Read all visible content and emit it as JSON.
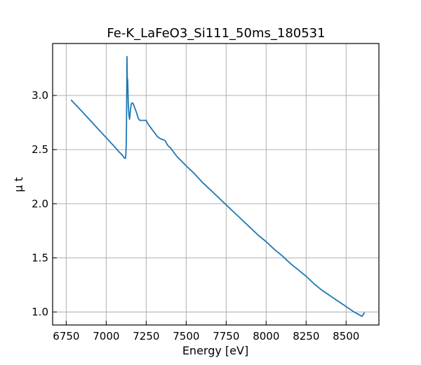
{
  "chart_data": {
    "type": "line",
    "title": "Fe-K_LaFeO3_Si111_50ms_180531",
    "xlabel": "Energy [eV]",
    "ylabel": "μ t",
    "xlim": [
      6665,
      8705
    ],
    "ylim": [
      0.88,
      3.48
    ],
    "xticks": [
      6750,
      7000,
      7250,
      7500,
      7750,
      8000,
      8250,
      8500
    ],
    "yticks": [
      1.0,
      1.5,
      2.0,
      2.5,
      3.0
    ],
    "xtick_labels": [
      "6750",
      "7000",
      "7250",
      "7500",
      "7750",
      "8000",
      "8250",
      "8500"
    ],
    "ytick_labels": [
      "1.0",
      "1.5",
      "2.0",
      "2.5",
      "3.0"
    ],
    "grid": true,
    "color": "#1f77b4",
    "series": [
      {
        "x": [
          6780,
          6850,
          6900,
          6950,
          7000,
          7050,
          7080,
          7100,
          7110,
          7115,
          7120,
          7123,
          7126,
          7128,
          7130,
          7132,
          7134,
          7136,
          7138,
          7142,
          7146,
          7150,
          7155,
          7160,
          7165,
          7170,
          7175,
          7180,
          7190,
          7200,
          7210,
          7220,
          7230,
          7240,
          7250,
          7260,
          7270,
          7280,
          7290,
          7300,
          7320,
          7340,
          7360,
          7370,
          7380,
          7390,
          7400,
          7420,
          7440,
          7460,
          7480,
          7500,
          7550,
          7600,
          7650,
          7700,
          7750,
          7800,
          7850,
          7900,
          7950,
          8000,
          8050,
          8100,
          8150,
          8200,
          8250,
          8300,
          8350,
          8400,
          8450,
          8500,
          8550,
          8600,
          8615
        ],
        "y": [
          2.96,
          2.85,
          2.77,
          2.69,
          2.61,
          2.53,
          2.48,
          2.45,
          2.43,
          2.42,
          2.42,
          2.45,
          2.6,
          2.95,
          3.36,
          3.12,
          3.15,
          3.05,
          2.92,
          2.82,
          2.78,
          2.84,
          2.91,
          2.93,
          2.93,
          2.92,
          2.9,
          2.88,
          2.84,
          2.79,
          2.77,
          2.77,
          2.77,
          2.77,
          2.77,
          2.74,
          2.72,
          2.7,
          2.68,
          2.66,
          2.62,
          2.6,
          2.59,
          2.58,
          2.55,
          2.53,
          2.52,
          2.48,
          2.44,
          2.41,
          2.38,
          2.35,
          2.28,
          2.2,
          2.13,
          2.06,
          1.99,
          1.92,
          1.85,
          1.78,
          1.71,
          1.65,
          1.58,
          1.52,
          1.45,
          1.39,
          1.33,
          1.26,
          1.2,
          1.15,
          1.1,
          1.05,
          1.0,
          0.96,
          0.995
        ]
      }
    ]
  }
}
